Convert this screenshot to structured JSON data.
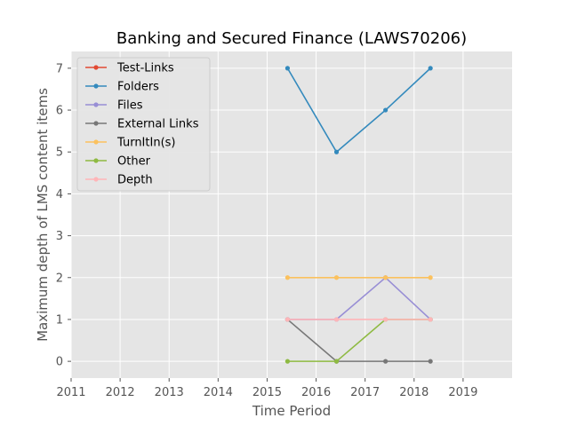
{
  "chart_data": {
    "type": "line",
    "title": "Banking and Secured Finance (LAWS70206)",
    "xlabel": "Time Period",
    "ylabel": "Maximum depth of LMS content items",
    "xlim": [
      2011,
      2020
    ],
    "ylim": [
      -0.4,
      7.4
    ],
    "xticks": [
      2011,
      2012,
      2013,
      2014,
      2015,
      2016,
      2017,
      2018,
      2019
    ],
    "yticks": [
      0,
      1,
      2,
      3,
      4,
      5,
      6,
      7
    ],
    "grid": true,
    "legend_position": "upper-left",
    "x": [
      "2015-06",
      "2016-06",
      "2017-06",
      "2018-05"
    ],
    "series": [
      {
        "name": "Test-Links",
        "color": "#E24A33",
        "values": [
          null,
          null,
          null,
          null
        ]
      },
      {
        "name": "Folders",
        "color": "#348ABD",
        "values": [
          7,
          5,
          6,
          7
        ]
      },
      {
        "name": "Files",
        "color": "#988ED5",
        "values": [
          1,
          1,
          2,
          1
        ]
      },
      {
        "name": "External Links",
        "color": "#777777",
        "values": [
          1,
          0,
          0,
          0
        ]
      },
      {
        "name": "TurnItIn(s)",
        "color": "#FBC15E",
        "values": [
          2,
          2,
          2,
          2
        ]
      },
      {
        "name": "Other",
        "color": "#8EBA42",
        "values": [
          0,
          0,
          1,
          1
        ]
      },
      {
        "name": "Depth",
        "color": "#FFB5B8",
        "values": [
          1,
          1,
          1,
          1
        ]
      }
    ]
  }
}
